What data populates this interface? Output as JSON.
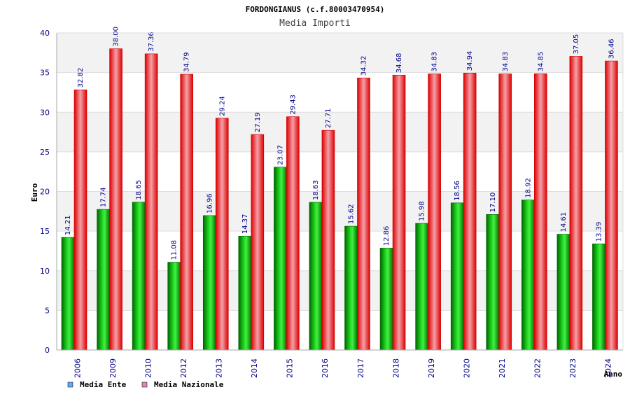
{
  "chart_data": {
    "type": "bar",
    "title": "FORDONGIANUS (c.f.80003470954)",
    "subtitle": "Media Importi",
    "xlabel": "Anno",
    "ylabel": "Euro",
    "ylim": [
      0,
      40
    ],
    "yticks": [
      0,
      5,
      10,
      15,
      20,
      25,
      30,
      35,
      40
    ],
    "grid": true,
    "legend_position": "bottom-left",
    "categories": [
      "2006",
      "2009",
      "2010",
      "2012",
      "2013",
      "2014",
      "2015",
      "2016",
      "2017",
      "2018",
      "2019",
      "2020",
      "2021",
      "2022",
      "2023",
      "2024"
    ],
    "series": [
      {
        "name": "Media Ente",
        "color": "#00a000",
        "legend_color": "#66aaee",
        "values": [
          14.21,
          17.74,
          18.65,
          11.08,
          16.96,
          14.37,
          23.07,
          18.63,
          15.62,
          12.86,
          15.98,
          18.56,
          17.1,
          18.92,
          14.61,
          13.39
        ],
        "labels": [
          "14.21",
          "17.74",
          "18.65",
          "11.08",
          "16.96",
          "14.37",
          "23.07",
          "18.63",
          "15.62",
          "12.86",
          "15.98",
          "18.56",
          "17.10",
          "18.92",
          "14.61",
          "13.39"
        ]
      },
      {
        "name": "Media Nazionale",
        "color": "#ee1111",
        "legend_color": "#dd88bb",
        "values": [
          32.82,
          38.0,
          37.36,
          34.79,
          29.24,
          27.19,
          29.43,
          27.71,
          34.32,
          34.68,
          34.83,
          34.94,
          34.83,
          34.85,
          37.05,
          36.46
        ],
        "labels": [
          "32.82",
          "38.00",
          "37.36",
          "34.79",
          "29.24",
          "27.19",
          "29.43",
          "27.71",
          "34.32",
          "34.68",
          "34.83",
          "34.94",
          "34.83",
          "34.85",
          "37.05",
          "36.46"
        ]
      }
    ]
  }
}
